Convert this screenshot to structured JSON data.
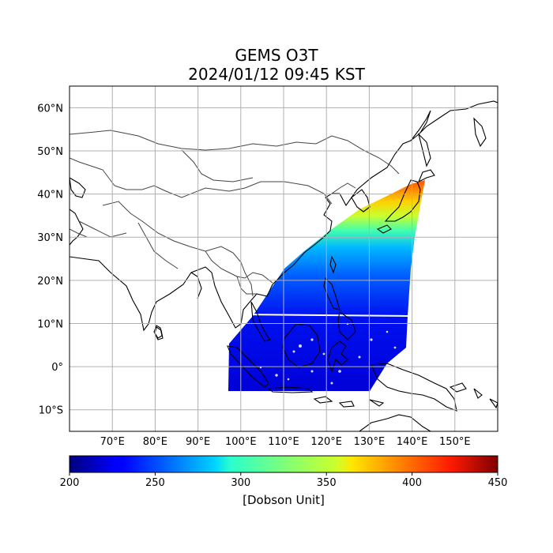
{
  "title": {
    "line1": "GEMS O3T",
    "line2": "2024/01/12 09:45 KST"
  },
  "map": {
    "lon_range": [
      60,
      160
    ],
    "lat_range": [
      -15,
      65
    ],
    "lon_ticks": [
      "70°E",
      "80°E",
      "90°E",
      "100°E",
      "110°E",
      "120°E",
      "130°E",
      "140°E",
      "150°E"
    ],
    "lat_ticks": [
      "60°N",
      "50°N",
      "40°N",
      "30°N",
      "20°N",
      "10°N",
      "0°",
      "10°S"
    ],
    "grid": true
  },
  "colorbar": {
    "min": 200,
    "max": 450,
    "ticks": [
      "200",
      "250",
      "300",
      "350",
      "400",
      "450"
    ],
    "label": "[Dobson Unit]",
    "colormap": "jet"
  },
  "colors": {
    "grid": "#b0b0b0",
    "coastline": "#000000",
    "border": "#444444"
  }
}
